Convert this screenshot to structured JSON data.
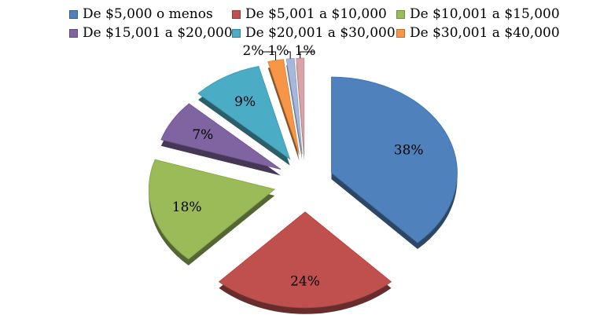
{
  "chart_data": {
    "type": "pie",
    "title": "",
    "legend_position": "top",
    "categories": [
      "De $5,000 o menos",
      "De $5,001 a $10,000",
      "De $10,001 a $15,000",
      "De $15,001 a $20,000",
      "De $20,001 a $30,000",
      "De $30,001 a $40,000",
      "",
      ""
    ],
    "values": [
      38,
      24,
      18,
      7,
      9,
      2,
      1,
      1
    ],
    "labels": [
      "38%",
      "24%",
      "18%",
      "7%",
      "9%",
      "2%",
      "1%",
      "1%"
    ],
    "colors": [
      "#4F81BD",
      "#C0504D",
      "#9BBB59",
      "#8064A2",
      "#4BACC6",
      "#F79646",
      "#A5B8DC",
      "#D9A3A7"
    ]
  }
}
